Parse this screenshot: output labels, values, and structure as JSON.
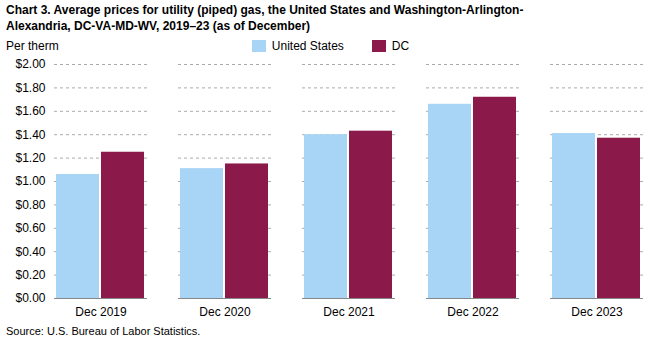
{
  "chart_data": {
    "type": "bar",
    "title": "Chart 3. Average prices for utility (piped) gas, the United States and Washington-Arlington-\nAlexandria, DC-VA-MD-WV, 2019–23 (as of December)",
    "ylabel": "Per therm",
    "source": "Source: U.S. Bureau of Labor Statistics.",
    "categories": [
      "Dec 2019",
      "Dec 2020",
      "Dec 2021",
      "Dec 2022",
      "Dec 2023"
    ],
    "series": [
      {
        "name": "United States",
        "color": "#a8d4f5",
        "values": [
          1.06,
          1.11,
          1.4,
          1.66,
          1.41
        ]
      },
      {
        "name": "DC",
        "color": "#8B1A4A",
        "values": [
          1.25,
          1.15,
          1.43,
          1.72,
          1.37
        ]
      }
    ],
    "ylim": [
      0.0,
      2.0
    ],
    "yticks": [
      {
        "value": 0.0,
        "label": "$0.00"
      },
      {
        "value": 0.2,
        "label": "$0.20"
      },
      {
        "value": 0.4,
        "label": "$0.40"
      },
      {
        "value": 0.6,
        "label": "$0.60"
      },
      {
        "value": 0.8,
        "label": "$0.80"
      },
      {
        "value": 1.0,
        "label": "$1.00"
      },
      {
        "value": 1.2,
        "label": "$1.20"
      },
      {
        "value": 1.4,
        "label": "$1.40"
      },
      {
        "value": 1.6,
        "label": "$1.60"
      },
      {
        "value": 1.8,
        "label": "$1.80"
      },
      {
        "value": 2.0,
        "label": "$2.00"
      }
    ],
    "grid": true,
    "legend": "top"
  }
}
